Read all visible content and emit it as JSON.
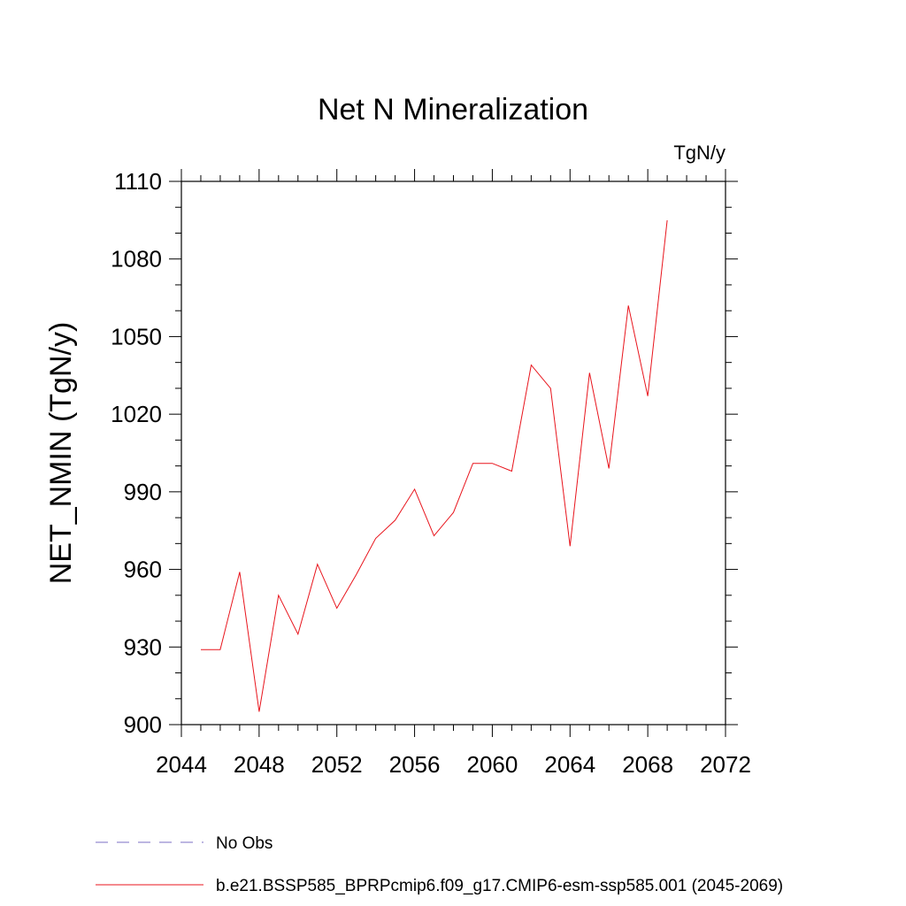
{
  "chart_data": {
    "type": "line",
    "title": "Net N Mineralization",
    "units_label": "TgN/y",
    "ylabel": "NET_NMIN  (TgN/y)",
    "xlabel": "",
    "xlim": [
      2044,
      2072
    ],
    "ylim": [
      900,
      1110
    ],
    "x_ticks": [
      2044,
      2048,
      2052,
      2056,
      2060,
      2064,
      2068,
      2072
    ],
    "y_ticks": [
      900,
      930,
      960,
      990,
      1020,
      1050,
      1080,
      1110
    ],
    "grid": false,
    "legend_position": "bottom",
    "series": [
      {
        "name": "b.e21.BSSP585_BPRPcmip6.f09_g17.CMIP6-esm-ssp585.001 (2045-2069)",
        "color": "#e8141c",
        "style": "solid",
        "x": [
          2045,
          2046,
          2047,
          2048,
          2049,
          2050,
          2051,
          2052,
          2053,
          2054,
          2055,
          2056,
          2057,
          2058,
          2059,
          2060,
          2061,
          2062,
          2063,
          2064,
          2065,
          2066,
          2067,
          2068,
          2069
        ],
        "y": [
          929,
          929,
          959,
          905,
          950,
          935,
          962,
          945,
          958,
          972,
          979,
          991,
          973,
          982,
          1001,
          1001,
          998,
          1039,
          1030,
          969,
          1036,
          999,
          1062,
          1027,
          1095
        ]
      }
    ],
    "legend": [
      {
        "label": "No Obs",
        "color": "#7b6fc4",
        "style": "dashed"
      },
      {
        "label": "b.e21.BSSP585_BPRPcmip6.f09_g17.CMIP6-esm-ssp585.001 (2045-2069)",
        "color": "#e8141c",
        "style": "solid"
      }
    ]
  }
}
